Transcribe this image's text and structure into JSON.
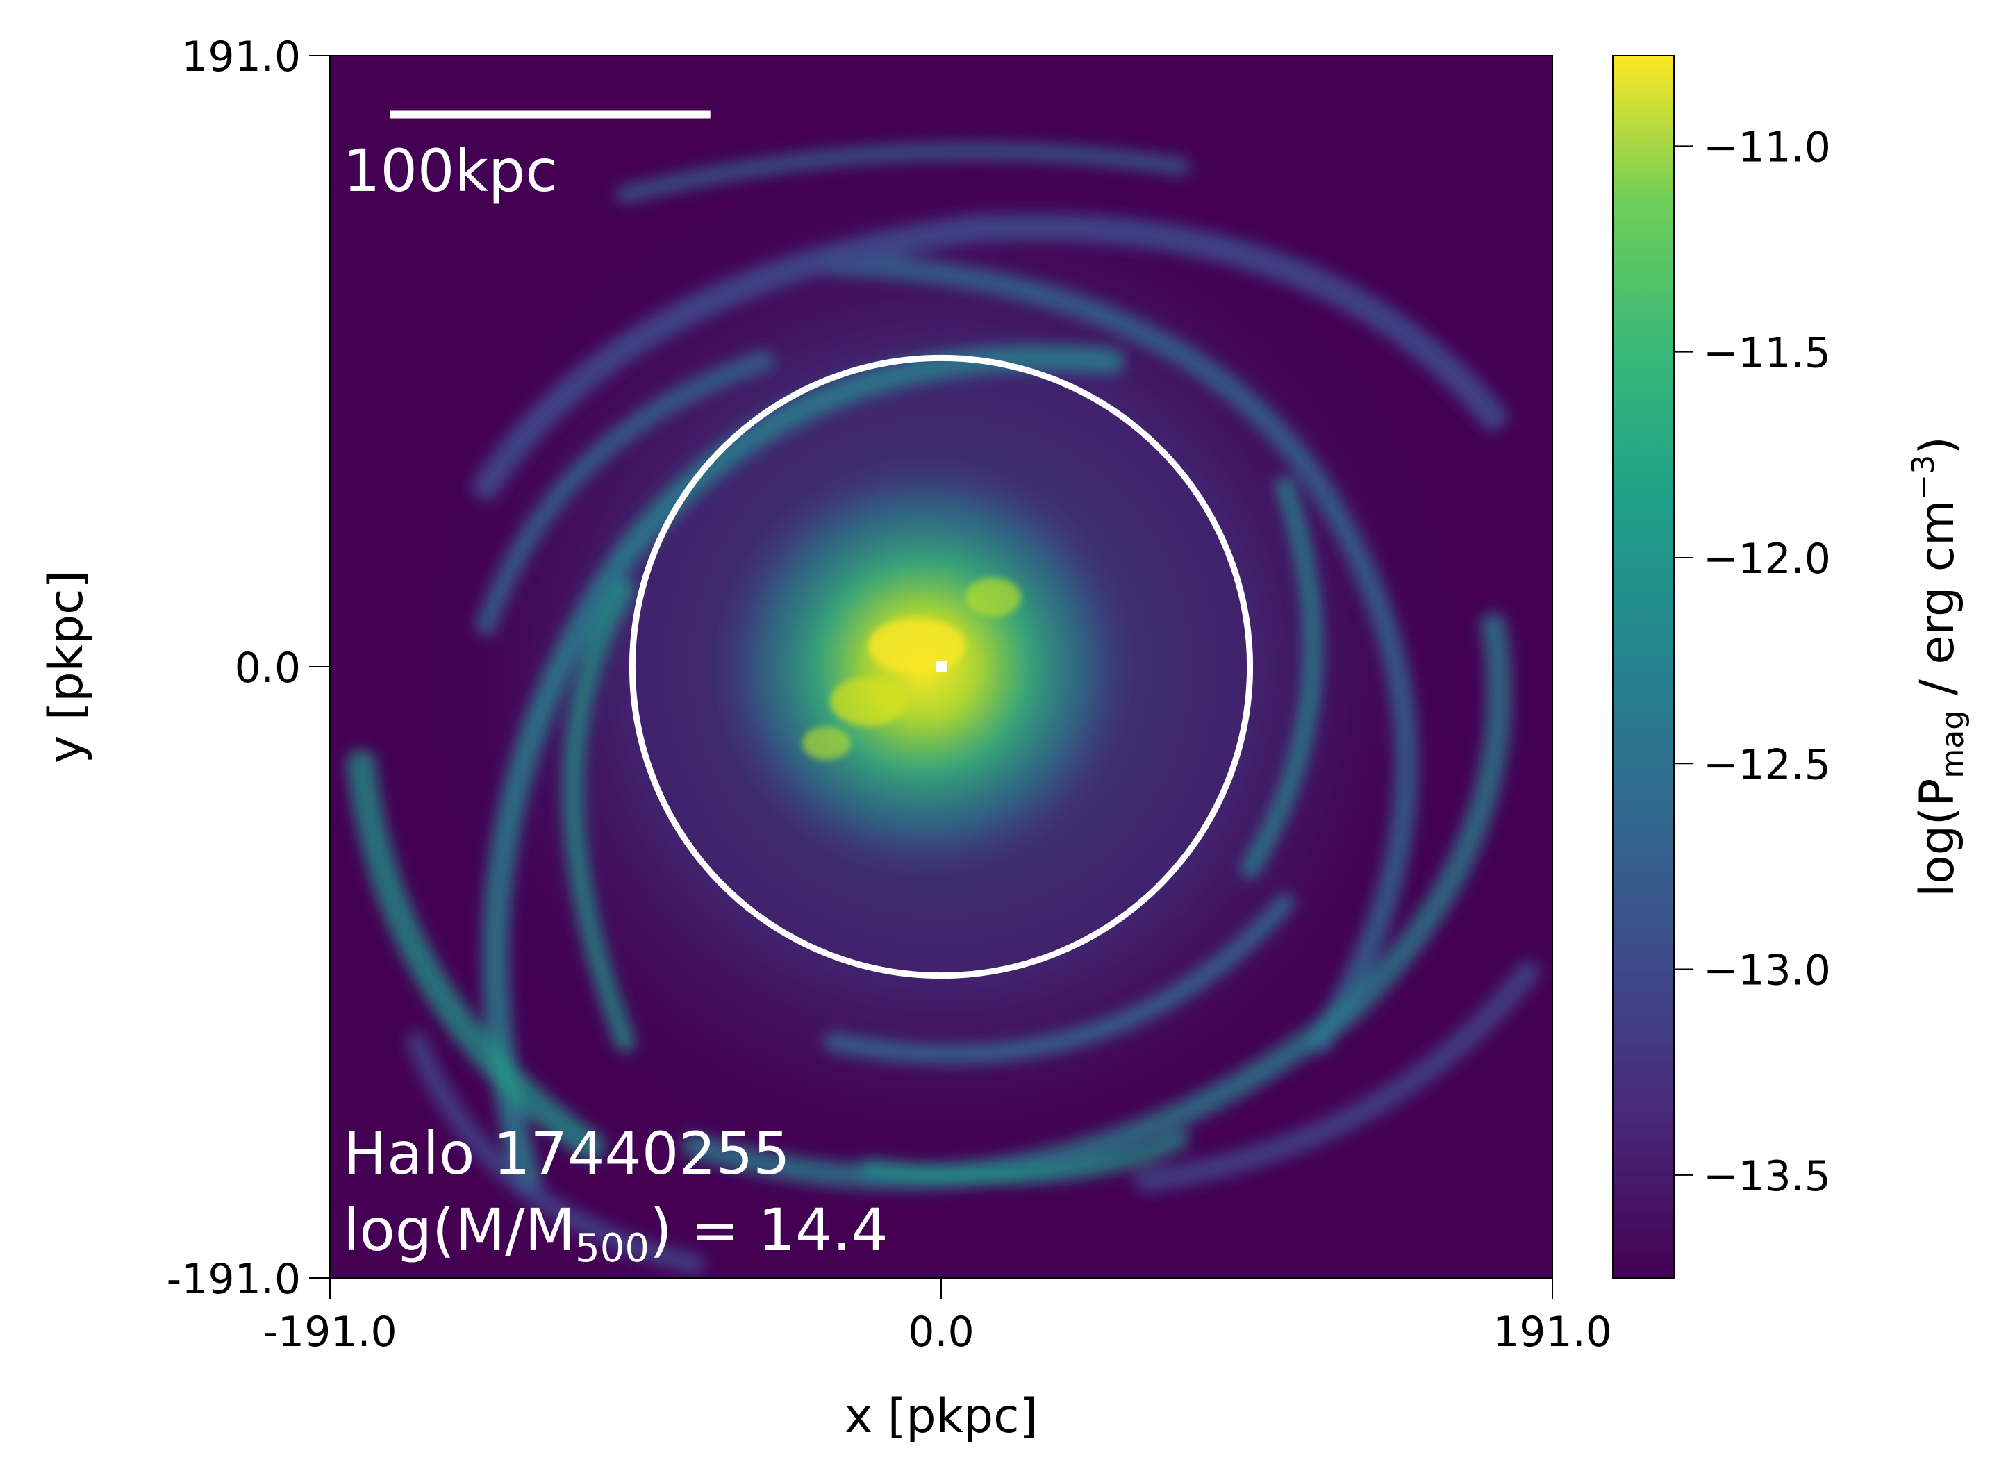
{
  "chart_data": {
    "type": "heatmap",
    "title": "",
    "xlabel": "x [pkpc]",
    "ylabel": "y [pkpc]",
    "xlim": [
      -191.0,
      191.0
    ],
    "ylim": [
      -191.0,
      191.0
    ],
    "x_ticks": [
      {
        "value": -191.0,
        "label": "-191.0"
      },
      {
        "value": 0.0,
        "label": "0.0"
      },
      {
        "value": 191.0,
        "label": "191.0"
      }
    ],
    "y_ticks": [
      {
        "value": -191.0,
        "label": "-191.0"
      },
      {
        "value": 0.0,
        "label": "0.0"
      },
      {
        "value": 191.0,
        "label": "191.0"
      }
    ],
    "colormap": "viridis",
    "colorbar": {
      "label_prefix": "log(P",
      "label_sub": "mag",
      "label_mid": " / erg cm",
      "label_sup": "−3",
      "label_suffix": ")",
      "range": [
        -13.75,
        -10.78
      ],
      "ticks": [
        {
          "value": -11.0,
          "label": "−11.0"
        },
        {
          "value": -11.5,
          "label": "−11.5"
        },
        {
          "value": -12.0,
          "label": "−12.0"
        },
        {
          "value": -12.5,
          "label": "−12.5"
        },
        {
          "value": -13.0,
          "label": "−13.0"
        },
        {
          "value": -13.5,
          "label": "−13.5"
        }
      ]
    },
    "annotations": {
      "scale_bar_label": "100kpc",
      "scale_bar_length_kpc": 100,
      "halo_label": "Halo 17440255",
      "mass_prefix": "log(M/M",
      "mass_sub": "500",
      "mass_suffix": ") = 14.4",
      "circle_center": [
        0.0,
        0.0
      ],
      "circle_radius_kpc": 96.5
    },
    "colors": {
      "viridis_low": "#440154",
      "viridis_high": "#fde725",
      "annotation": "#ffffff"
    }
  }
}
